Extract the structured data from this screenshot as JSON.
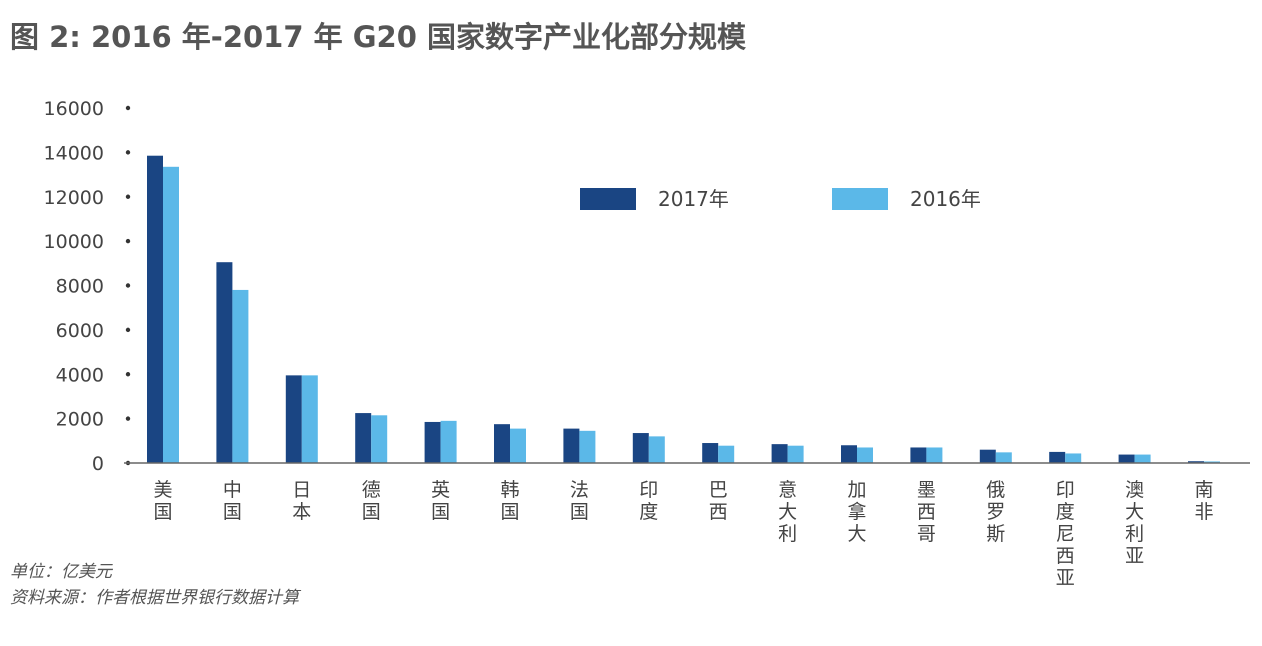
{
  "title": "图 2: 2016 年-2017 年 G20 国家数字产业化部分规模",
  "notes": {
    "unit": "单位：亿美元",
    "source": "资料来源：作者根据世界银行数据计算"
  },
  "colors": {
    "series_2017": "#1a4583",
    "series_2016": "#5bb8e8",
    "axis": "#666666",
    "text": "#444444"
  },
  "chart_data": {
    "type": "bar",
    "title": "图 2: 2016 年-2017 年 G20 国家数字产业化部分规模",
    "xlabel": "",
    "ylabel": "亿美元",
    "ylim": [
      0,
      16000
    ],
    "yticks": [
      0,
      2000,
      4000,
      6000,
      8000,
      10000,
      12000,
      14000,
      16000
    ],
    "ytick_labels": [
      "0",
      "2000",
      "4000",
      "6000",
      "8000",
      "10000",
      "12000",
      "14000",
      "16000"
    ],
    "grid": false,
    "legend_position": "top-center",
    "categories": [
      "美国",
      "中国",
      "日本",
      "德国",
      "英国",
      "韩国",
      "法国",
      "印度",
      "巴西",
      "意大利",
      "加拿大",
      "墨西哥",
      "俄罗斯",
      "印度尼西亚",
      "澳大利亚",
      "南非"
    ],
    "series": [
      {
        "name": "2017年",
        "values": [
          13850,
          9050,
          3950,
          2250,
          1850,
          1750,
          1550,
          1350,
          900,
          850,
          800,
          700,
          600,
          500,
          380,
          80
        ]
      },
      {
        "name": "2016年",
        "values": [
          13350,
          7800,
          3950,
          2150,
          1900,
          1550,
          1450,
          1200,
          780,
          780,
          700,
          700,
          480,
          430,
          380,
          70
        ]
      }
    ]
  }
}
